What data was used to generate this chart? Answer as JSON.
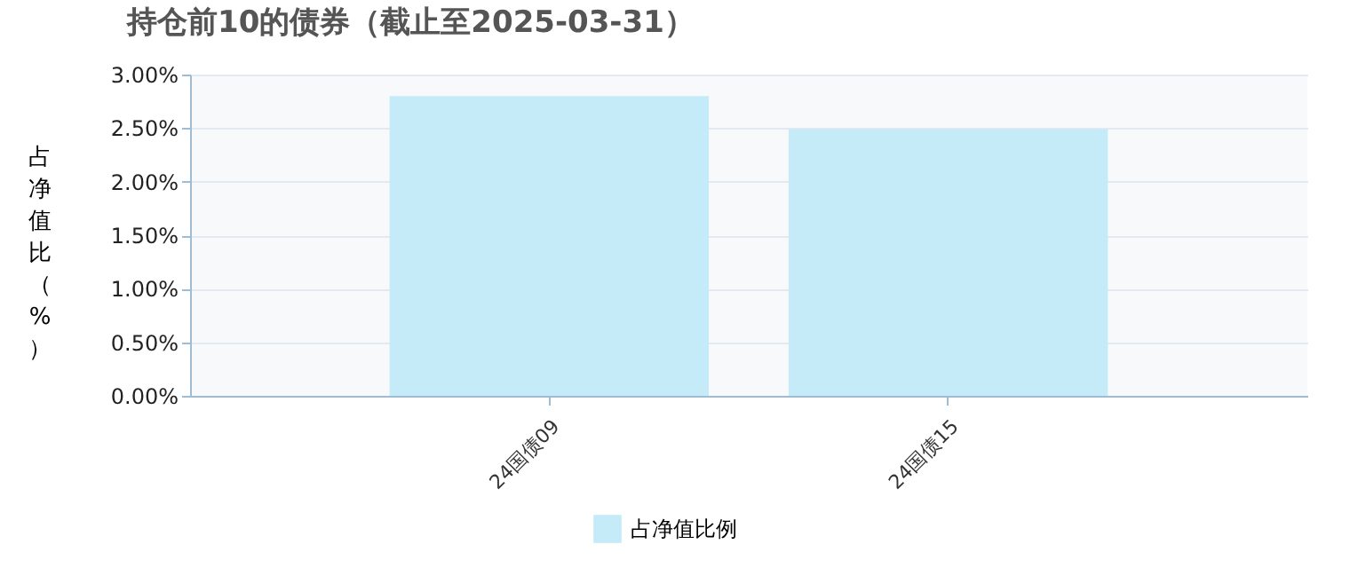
{
  "chart_data": {
    "type": "bar",
    "title": "持仓前10的债券（截止至2025-03-31）",
    "ylabel": "占净值比（%）",
    "categories": [
      "24国债09",
      "24国债15"
    ],
    "series": [
      {
        "name": "占净值比例",
        "color": "#c4ebf7",
        "values": [
          2.8,
          2.49
        ]
      }
    ],
    "ylim": [
      0,
      3
    ],
    "yticks": [
      {
        "value": 0,
        "label": "0.00%"
      },
      {
        "value": 0.5,
        "label": "0.50%"
      },
      {
        "value": 1,
        "label": "1.00%"
      },
      {
        "value": 1.5,
        "label": "1.50%"
      },
      {
        "value": 2,
        "label": "2.00%"
      },
      {
        "value": 2.5,
        "label": "2.50%"
      },
      {
        "value": 3,
        "label": "3.00%"
      }
    ],
    "grid": "y",
    "legend": "bottom"
  }
}
